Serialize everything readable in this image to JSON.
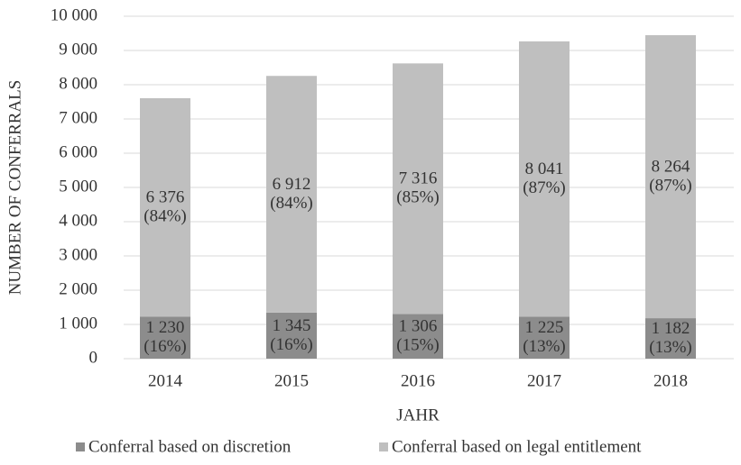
{
  "chart_data": {
    "type": "stacked_bar",
    "categories": [
      "2014",
      "2015",
      "2016",
      "2017",
      "2018"
    ],
    "series": [
      {
        "name": "Conferral based on discretion",
        "color": "#8c8c8c",
        "values": [
          1230,
          1345,
          1306,
          1225,
          1182
        ],
        "value_labels": [
          [
            "1 230",
            "(16%)"
          ],
          [
            "1 345",
            "(16%)"
          ],
          [
            "1 306",
            "(15%)"
          ],
          [
            "1 225",
            "(13%)"
          ],
          [
            "1 182",
            "(13%)"
          ]
        ]
      },
      {
        "name": "Conferral based on legal entitlement",
        "color": "#bfbfbf",
        "values": [
          6376,
          6912,
          7316,
          8041,
          8264
        ],
        "value_labels": [
          [
            "6 376",
            "(84%)"
          ],
          [
            "6 912",
            "(84%)"
          ],
          [
            "7 316",
            "(85%)"
          ],
          [
            "8 041",
            "(87%)"
          ],
          [
            "8 264",
            "(87%)"
          ]
        ]
      }
    ],
    "ylabel": "NUMBER OF CONFERRALS",
    "xlabel": "JAHR",
    "ylim": [
      0,
      10000
    ],
    "yticks": [
      0,
      {
        "value": 1000,
        "label": "1 000"
      },
      {
        "value": 2000,
        "label": "2 000"
      },
      {
        "value": 3000,
        "label": "3 000"
      },
      {
        "value": 4000,
        "label": "4 000"
      },
      {
        "value": 5000,
        "label": "5 000"
      },
      {
        "value": 6000,
        "label": "6 000"
      },
      {
        "value": 7000,
        "label": "7 000"
      },
      {
        "value": 8000,
        "label": "8 000"
      },
      {
        "value": 9000,
        "label": "9 000"
      },
      {
        "value": 10000,
        "label": "10 000"
      }
    ],
    "grid": true,
    "legend": "bottom"
  }
}
